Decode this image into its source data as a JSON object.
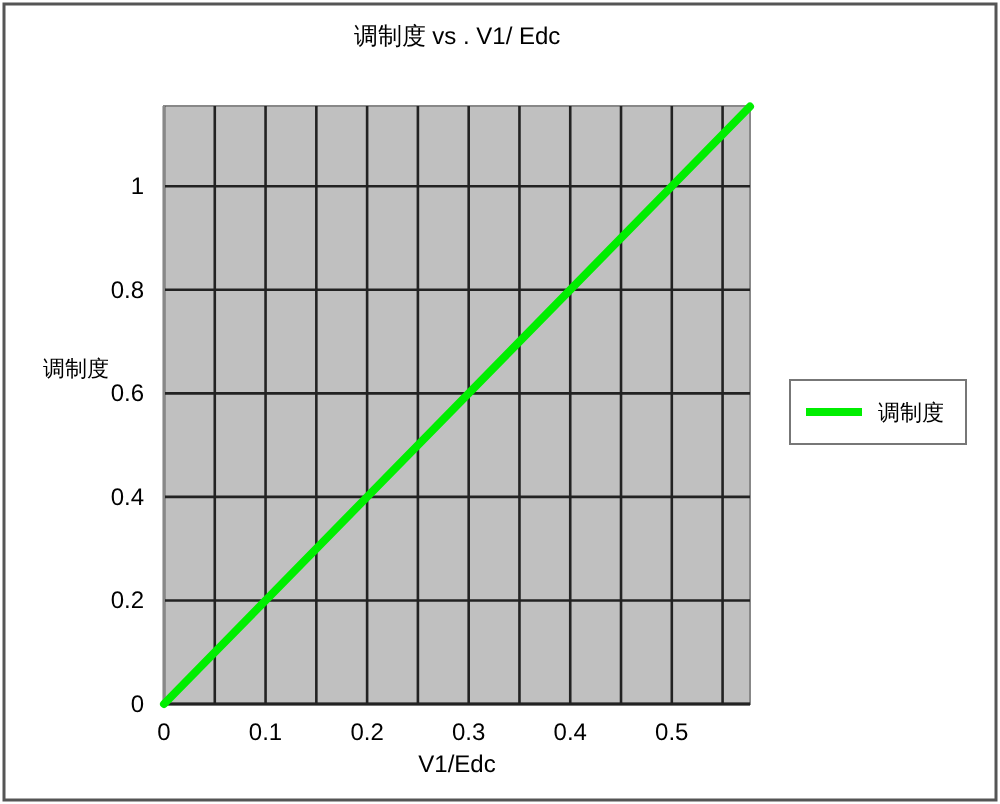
{
  "chart_data": {
    "type": "line",
    "title": "调制度 vs . V1/ Edc",
    "xlabel": "V1/Edc",
    "ylabel": "调制度",
    "x": [
      0,
      0.577
    ],
    "series": [
      {
        "name": "调制度",
        "color": "#00ee00",
        "values": [
          0,
          1.154
        ]
      }
    ],
    "xlim": [
      0,
      0.577
    ],
    "ylim": [
      0,
      1.155
    ],
    "xticks": [
      0,
      {
        "value": 0.05,
        "label": null
      },
      0.1,
      {
        "value": 0.15,
        "label": null
      },
      0.2,
      {
        "value": 0.25,
        "label": null
      },
      0.3,
      {
        "value": 0.35,
        "label": null
      },
      0.4,
      {
        "value": 0.45,
        "label": null
      },
      0.5,
      {
        "value": 0.55,
        "label": null
      }
    ],
    "yticks": [
      0,
      0.2,
      0.4,
      0.6,
      0.8,
      1
    ],
    "grid": true,
    "legend": "right",
    "marker": "none",
    "line_style": "solid"
  }
}
